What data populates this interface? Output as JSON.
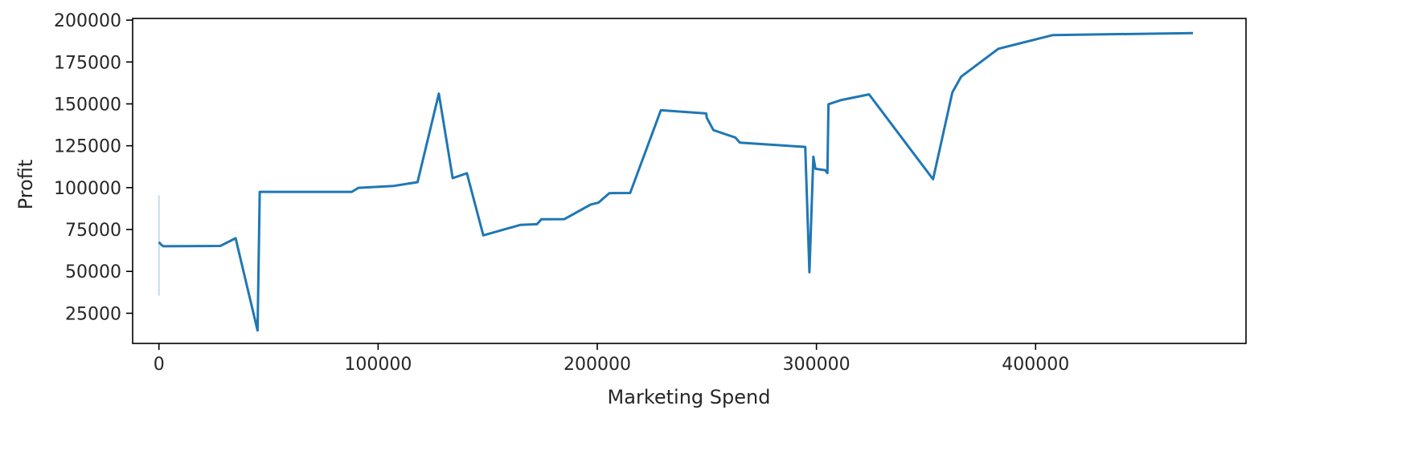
{
  "chart_data": {
    "type": "line",
    "title": "",
    "xlabel": "Marketing Spend",
    "ylabel": "Profit",
    "xlim": [
      -12000,
      496000
    ],
    "ylim": [
      7000,
      201000
    ],
    "xticks": [
      0,
      100000,
      200000,
      300000,
      400000
    ],
    "xtick_labels": [
      "0",
      "100000",
      "200000",
      "300000",
      "400000"
    ],
    "yticks": [
      25000,
      50000,
      75000,
      100000,
      125000,
      150000,
      175000,
      200000
    ],
    "ytick_labels": [
      "25000",
      "50000",
      "75000",
      "100000",
      "125000",
      "150000",
      "175000",
      "200000"
    ],
    "grid": false,
    "legend": "none",
    "series": [
      {
        "color": "#1f77b4",
        "points": [
          [
            0,
            67500
          ],
          [
            1000,
            66000
          ],
          [
            2000,
            65000
          ],
          [
            28000,
            65200
          ],
          [
            35000,
            69800
          ],
          [
            45000,
            14700
          ],
          [
            46000,
            97500
          ],
          [
            48000,
            97500
          ],
          [
            88000,
            97500
          ],
          [
            91000,
            99900
          ],
          [
            107000,
            101000
          ],
          [
            118000,
            103300
          ],
          [
            127700,
            156100
          ],
          [
            134000,
            105700
          ],
          [
            140500,
            108600
          ],
          [
            148000,
            71500
          ],
          [
            165000,
            77800
          ],
          [
            172500,
            78200
          ],
          [
            174500,
            81100
          ],
          [
            185000,
            81200
          ],
          [
            197000,
            89900
          ],
          [
            200500,
            91000
          ],
          [
            205500,
            96700
          ],
          [
            215000,
            96800
          ],
          [
            229000,
            146200
          ],
          [
            249700,
            144300
          ],
          [
            250000,
            141600
          ],
          [
            253000,
            134300
          ],
          [
            263000,
            129900
          ],
          [
            265000,
            126900
          ],
          [
            294900,
            124300
          ],
          [
            296800,
            49500
          ],
          [
            298600,
            118500
          ],
          [
            299500,
            111300
          ],
          [
            304000,
            110400
          ],
          [
            305000,
            108700
          ],
          [
            305500,
            149800
          ],
          [
            311000,
            152200
          ],
          [
            324000,
            155700
          ],
          [
            353200,
            105000
          ],
          [
            362000,
            156900
          ],
          [
            366000,
            166200
          ],
          [
            383000,
            182900
          ],
          [
            407900,
            191100
          ],
          [
            471800,
            192300
          ]
        ],
        "ci": [
          {
            "x": 0,
            "low": 35500,
            "high": 95500
          }
        ]
      }
    ]
  }
}
